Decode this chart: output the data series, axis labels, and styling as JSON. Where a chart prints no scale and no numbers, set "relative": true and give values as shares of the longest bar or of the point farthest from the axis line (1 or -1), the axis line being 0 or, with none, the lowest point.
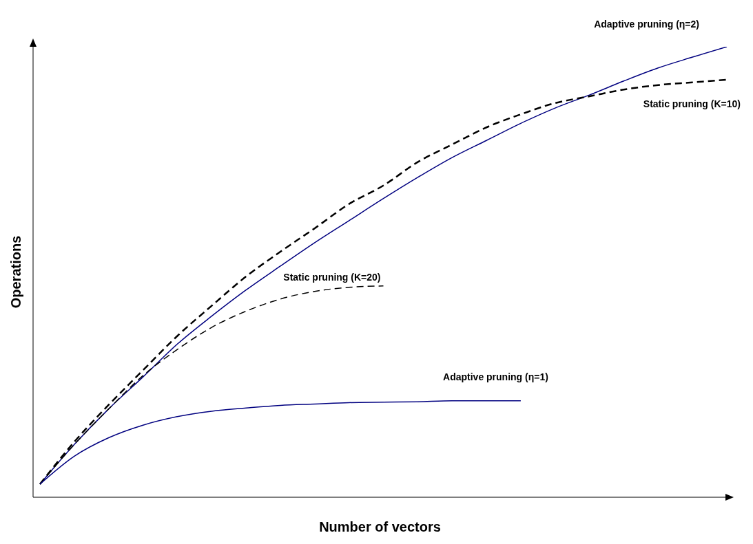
{
  "chart_data": {
    "type": "line",
    "relative": true,
    "xlabel": "Number of vectors",
    "ylabel": "Operations",
    "legend": false,
    "grid": false,
    "marker": "none",
    "categories": [
      null,
      null,
      null,
      null,
      null,
      null,
      null,
      null,
      null,
      null,
      null,
      null,
      null,
      null,
      null,
      null,
      null,
      null,
      null,
      null,
      null
    ],
    "series": [
      {
        "name": "Adaptive pruning (η=2)",
        "color": "#000080",
        "line_style": "solid",
        "values": [
          0.029,
          0.117,
          0.196,
          0.267,
          0.34,
          0.402,
          0.46,
          0.513,
          0.565,
          0.614,
          0.663,
          0.71,
          0.754,
          0.792,
          0.83,
          0.864,
          0.893,
          0.924,
          0.953,
          0.977,
          1
        ]
      },
      {
        "name": "Static pruning (K=10)",
        "color": "#000000",
        "line_style": "dashed",
        "values": [
          0.029,
          0.123,
          0.205,
          0.282,
          0.358,
          0.425,
          0.49,
          0.545,
          0.597,
          0.651,
          0.692,
          0.744,
          0.783,
          0.821,
          0.85,
          0.875,
          0.89,
          0.905,
          0.915,
          0.921,
          0.927
        ]
      },
      {
        "name": "Static pruning (K=20)",
        "color": "#000000",
        "line_style": "dashed",
        "values": [
          0.029,
          0.117,
          0.196,
          0.27,
          0.328,
          0.377,
          0.413,
          0.44,
          0.457,
          0.466,
          0.469,
          null,
          null,
          null,
          null,
          null,
          null,
          null,
          null,
          null,
          null
        ]
      },
      {
        "name": "Adaptive pruning (η=1)",
        "color": "#000080",
        "line_style": "solid",
        "values": [
          0.029,
          0.091,
          0.132,
          0.16,
          0.179,
          0.191,
          0.198,
          0.204,
          0.207,
          0.21,
          0.211,
          0.212,
          0.214,
          0.214,
          0.214,
          null,
          null,
          null,
          null,
          null,
          null
        ]
      }
    ]
  }
}
